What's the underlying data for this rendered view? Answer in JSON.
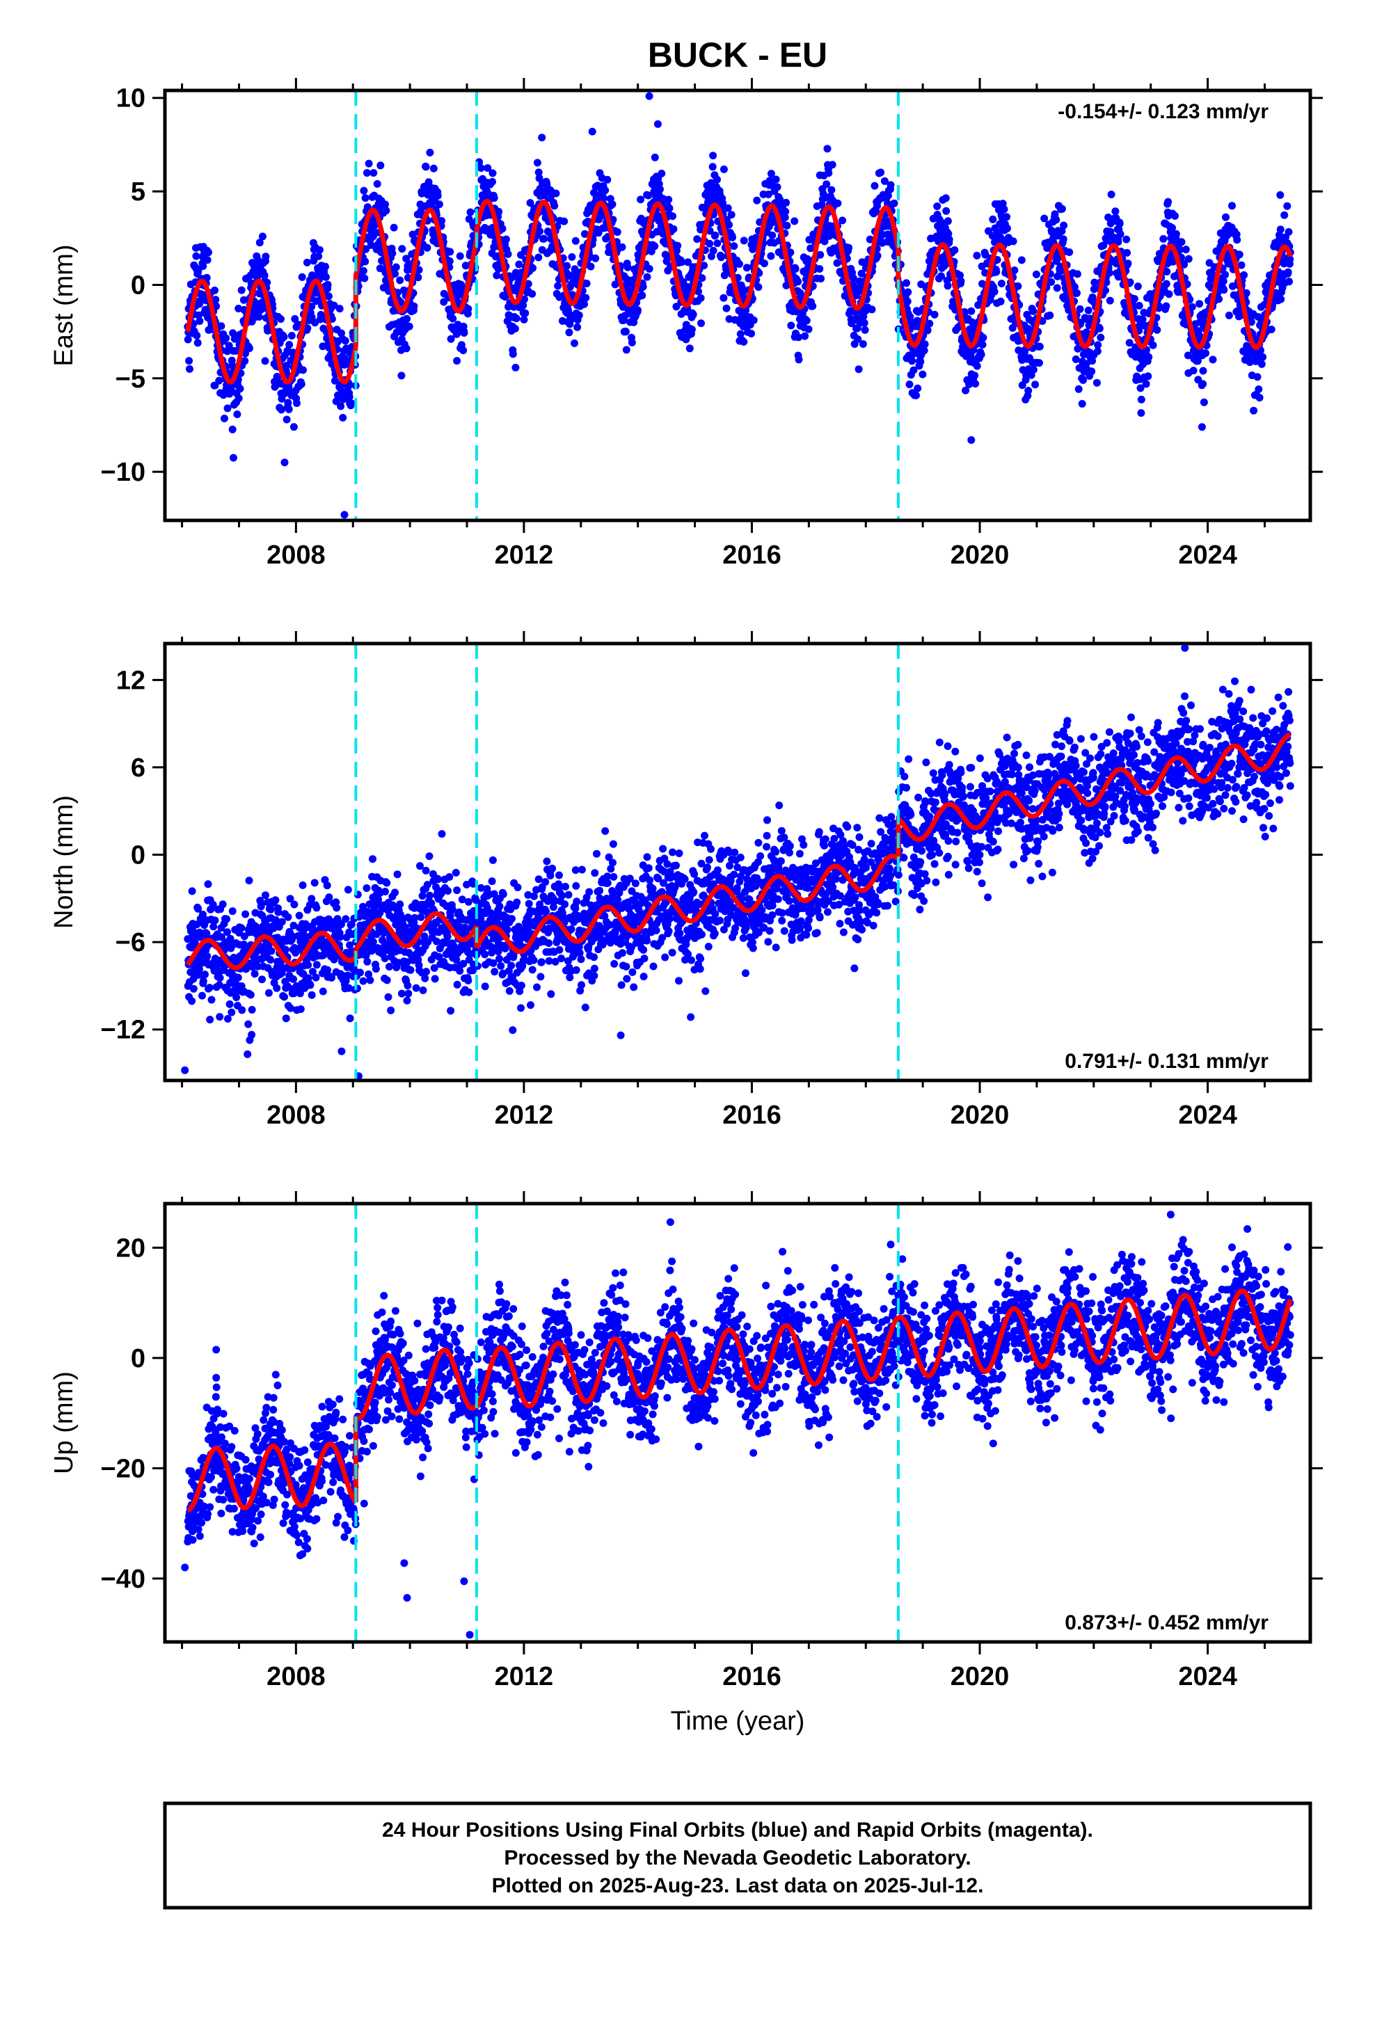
{
  "title": "BUCK - EU",
  "footer": {
    "lines": [
      "24 Hour Positions Using Final Orbits (blue) and Rapid Orbits (magenta).",
      "Processed by the Nevada Geodetic Laboratory.",
      "Plotted on 2025-Aug-23. Last data on 2025-Jul-12."
    ]
  },
  "colors": {
    "points": "#0000ff",
    "model": "#ff0000",
    "offset_lines": "#00e5ee",
    "frame": "#000000"
  },
  "chart_data": [
    {
      "type": "scatter",
      "ylabel": "East (mm)",
      "xlabel": "",
      "xlim": [
        2005.7,
        2025.8
      ],
      "ylim": [
        -12.6,
        10.4
      ],
      "xticks": [
        2008,
        2012,
        2016,
        2020,
        2024
      ],
      "yticks": [
        -10,
        -5,
        0,
        5,
        10
      ],
      "ytick_labels": [
        "−10",
        "−5",
        "0",
        "5",
        "10"
      ],
      "rate_text": "-0.154+/- 0.123 mm/yr",
      "rate_position": "top-right",
      "offset_epochs": [
        2009.05,
        2011.17,
        2018.57
      ],
      "model": {
        "start": 2006.1,
        "end": 2025.45,
        "segments": [
          {
            "from": 2006.1,
            "to": 2009.05,
            "mean": -2.5,
            "trend": 0,
            "amplitude": 2.7
          },
          {
            "from": 2009.05,
            "to": 2011.17,
            "mean": 1.3,
            "trend": 0,
            "amplitude": 2.7
          },
          {
            "from": 2011.17,
            "to": 2018.57,
            "mean": 1.6,
            "trend": -0.05,
            "amplitude": 2.7
          },
          {
            "from": 2018.57,
            "to": 2025.45,
            "mean": -0.6,
            "trend": -0.02,
            "amplitude": 2.7
          }
        ],
        "phase_peak": 0.35
      },
      "scatter_spread": 1.2,
      "outliers": [
        [
          2008.85,
          -12.3
        ],
        [
          2014.2,
          10.1
        ],
        [
          2014.35,
          8.6
        ],
        [
          2013.2,
          8.2
        ],
        [
          2007.8,
          -9.5
        ],
        [
          2023.9,
          -7.6
        ],
        [
          2019.85,
          -8.3
        ]
      ]
    },
    {
      "type": "scatter",
      "ylabel": "North (mm)",
      "xlabel": "",
      "xlim": [
        2005.7,
        2025.8
      ],
      "ylim": [
        -15.5,
        14.5
      ],
      "xticks": [
        2008,
        2012,
        2016,
        2020,
        2024
      ],
      "yticks": [
        -12,
        -6,
        0,
        6,
        12
      ],
      "ytick_labels": [
        "−12",
        "−6",
        "0",
        "6",
        "12"
      ],
      "rate_text": "0.791+/- 0.131 mm/yr",
      "rate_position": "bottom-right",
      "offset_epochs": [
        2009.05,
        2011.17,
        2018.57
      ],
      "model": {
        "start": 2006.1,
        "end": 2025.45,
        "segments": [
          {
            "from": 2006.1,
            "to": 2009.05,
            "mean": -6.6,
            "trend": 0.25,
            "amplitude": 1.0
          },
          {
            "from": 2009.05,
            "to": 2011.17,
            "mean": -5.2,
            "trend": 0.45,
            "amplitude": 1.0
          },
          {
            "from": 2011.17,
            "to": 2018.57,
            "mean": -3.6,
            "trend": 0.7,
            "amplitude": 1.0
          },
          {
            "from": 2018.57,
            "to": 2025.45,
            "mean": 4.5,
            "trend": 0.8,
            "amplitude": 1.0
          }
        ],
        "phase_peak": 0.45
      },
      "scatter_spread": 1.8,
      "outliers": [
        [
          2006.05,
          -14.8
        ],
        [
          2009.1,
          -15.2
        ],
        [
          2007.15,
          -13.7
        ],
        [
          2008.8,
          -13.5
        ],
        [
          2013.7,
          -12.4
        ],
        [
          2017.8,
          -7.8
        ],
        [
          2025.15,
          1.8
        ],
        [
          2023.6,
          14.2
        ]
      ]
    },
    {
      "type": "scatter",
      "ylabel": "Up (mm)",
      "xlabel": "Time (year)",
      "xlim": [
        2005.7,
        2025.8
      ],
      "ylim": [
        -51.5,
        28
      ],
      "xticks": [
        2008,
        2012,
        2016,
        2020,
        2024
      ],
      "yticks": [
        -40,
        -20,
        0,
        20
      ],
      "ytick_labels": [
        "−40",
        "−20",
        "0",
        "20"
      ],
      "rate_text": "0.873+/- 0.452 mm/yr",
      "rate_position": "bottom-right",
      "offset_epochs": [
        2009.05,
        2011.17,
        2018.57
      ],
      "model": {
        "start": 2006.1,
        "end": 2025.45,
        "segments": [
          {
            "from": 2006.1,
            "to": 2009.05,
            "mean": -21.5,
            "trend": 0.4,
            "amplitude": 5.5
          },
          {
            "from": 2009.05,
            "to": 2011.17,
            "mean": -4.5,
            "trend": 0.9,
            "amplitude": 5.5
          },
          {
            "from": 2011.17,
            "to": 2018.57,
            "mean": -1.0,
            "trend": 0.8,
            "amplitude": 5.5
          },
          {
            "from": 2018.57,
            "to": 2025.45,
            "mean": 4.6,
            "trend": 0.8,
            "amplitude": 5.5
          }
        ],
        "phase_peak": 0.6
      },
      "scatter_spread": 5.0,
      "outliers": [
        [
          2011.05,
          -50.2
        ],
        [
          2009.95,
          -43.5
        ],
        [
          2010.95,
          -40.5
        ],
        [
          2009.9,
          -37.2
        ],
        [
          2006.6,
          1.5
        ],
        [
          2023.35,
          26.0
        ],
        [
          2012.8,
          -17.0
        ],
        [
          2006.05,
          -38.0
        ]
      ]
    }
  ]
}
